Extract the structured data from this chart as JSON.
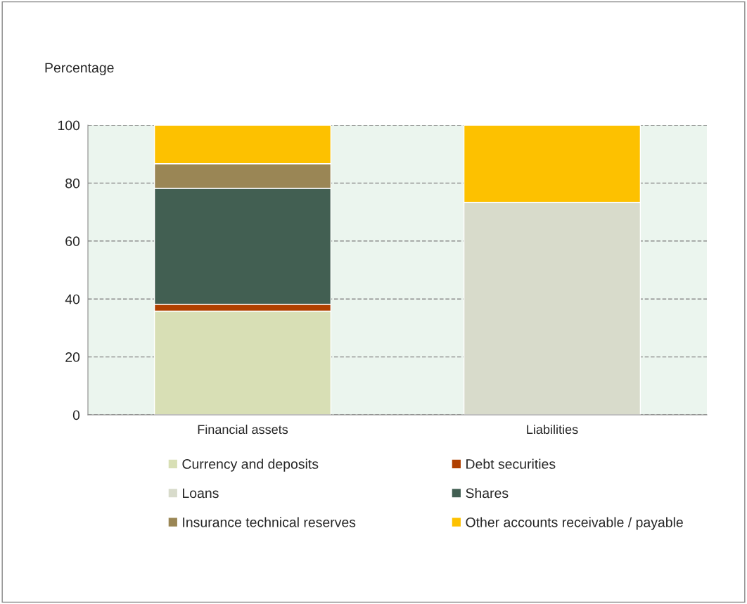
{
  "chart_data": {
    "type": "bar",
    "stacked": true,
    "ylabel": "Percentage",
    "categories": [
      "Financial assets",
      "Liabilities"
    ],
    "series": [
      {
        "name": "Currency and deposits",
        "color": "#d8dfb5",
        "values": [
          35.8,
          0
        ]
      },
      {
        "name": "Debt securities",
        "color": "#b04000",
        "values": [
          2.4,
          0
        ]
      },
      {
        "name": "Loans",
        "color": "#d8dbcb",
        "values": [
          0,
          73.4
        ]
      },
      {
        "name": "Shares",
        "color": "#425f52",
        "values": [
          40.0,
          0
        ]
      },
      {
        "name": "Insurance technical reserves",
        "color": "#9a8655",
        "values": [
          8.5,
          0
        ]
      },
      {
        "name": "Other accounts receivable / payable",
        "color": "#fdc100",
        "values": [
          13.3,
          26.6
        ]
      }
    ],
    "ylim": [
      0,
      100
    ],
    "yticks": [
      0,
      20,
      40,
      60,
      80,
      100
    ],
    "grid": "y",
    "legend": "bottom"
  }
}
